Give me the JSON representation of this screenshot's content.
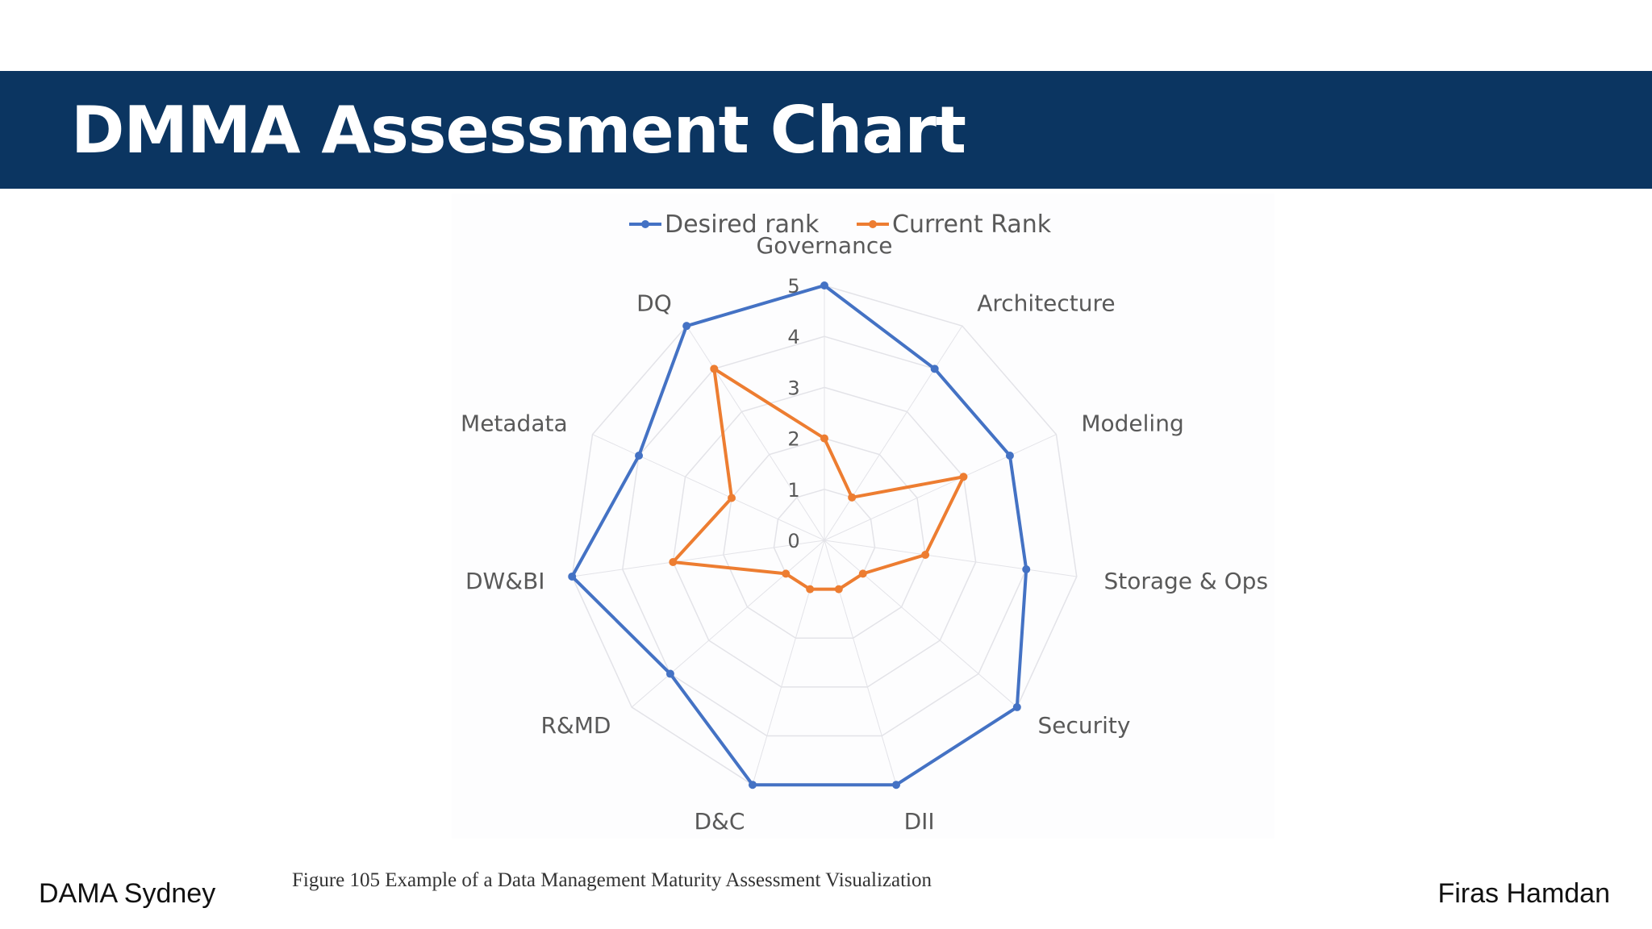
{
  "slide": {
    "title": "DMMA Assessment Chart",
    "caption": "Figure 105 Example of a Data Management Maturity Assessment Visualization",
    "footer_left": "DAMA Sydney",
    "footer_right": "Firas Hamdan"
  },
  "colors": {
    "banner": "#0b3561",
    "desired": "#4472c4",
    "current": "#ed7d31",
    "grid": "#e3e3e8",
    "label": "#595959"
  },
  "chart_data": {
    "type": "radar",
    "categories": [
      "Governance",
      "Architecture",
      "Modeling",
      "Storage & Ops",
      "Security",
      "DII",
      "D&C",
      "R&MD",
      "DW&BI",
      "Metadata",
      "DQ"
    ],
    "ticks": [
      "0",
      "1",
      "2",
      "3",
      "4",
      "5"
    ],
    "rlim": [
      0,
      5
    ],
    "legend_position": "top",
    "series": [
      {
        "name": "Desired rank",
        "values": [
          5,
          4,
          4,
          4,
          5,
          5,
          5,
          4,
          5,
          4,
          5
        ]
      },
      {
        "name": "Current Rank",
        "values": [
          2,
          1,
          3,
          2,
          1,
          1,
          1,
          1,
          3,
          2,
          4
        ]
      }
    ]
  }
}
